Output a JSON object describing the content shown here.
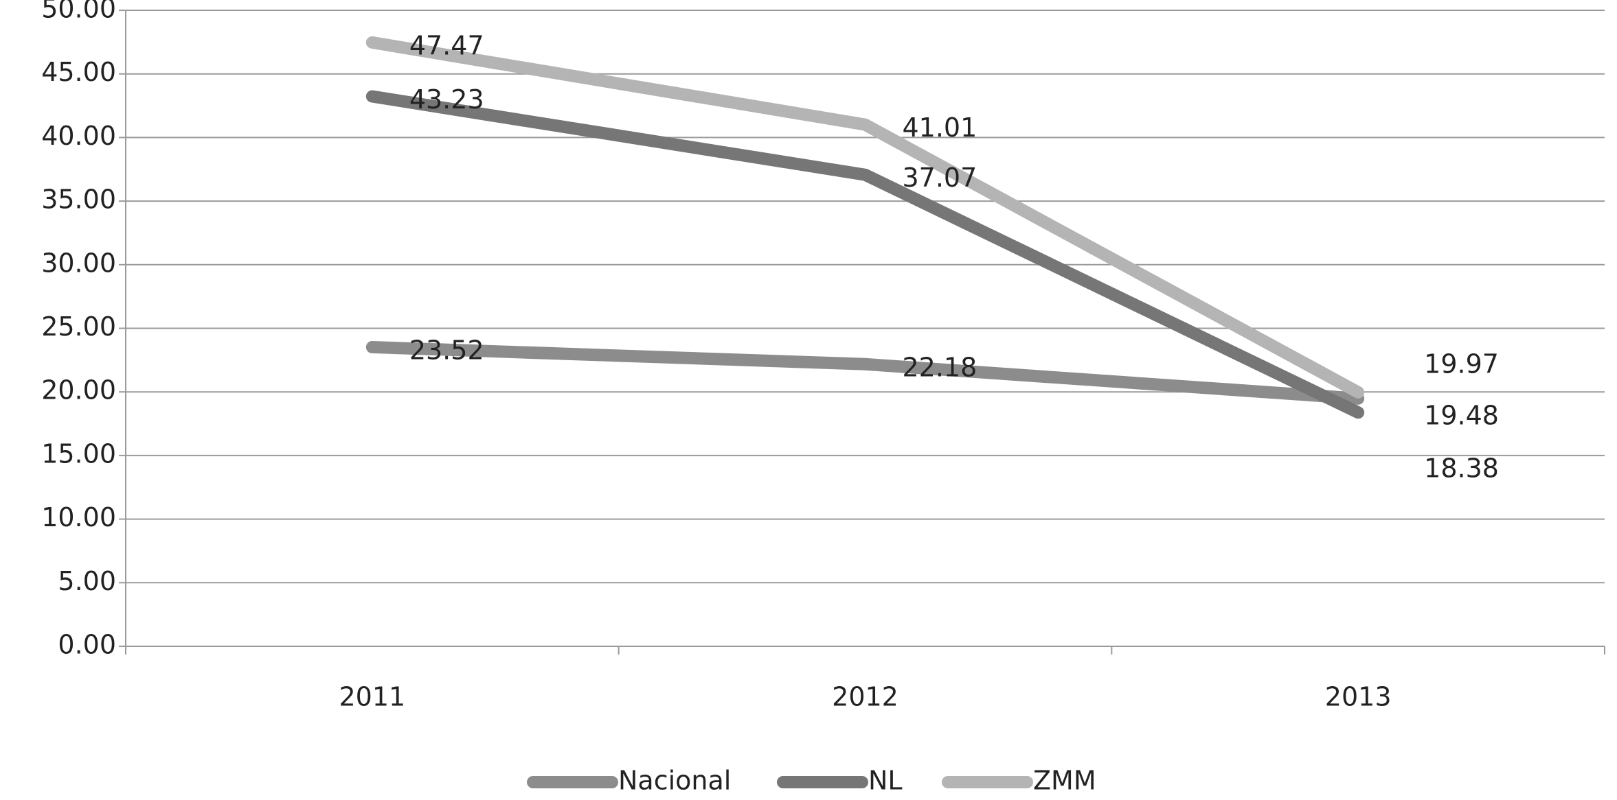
{
  "chart_data": {
    "type": "line",
    "categories": [
      "2011",
      "2012",
      "2013"
    ],
    "series": [
      {
        "name": "Nacional",
        "color": "#8c8c8c",
        "values": [
          23.52,
          22.18,
          19.48
        ]
      },
      {
        "name": "NL",
        "color": "#767676",
        "values": [
          43.23,
          37.07,
          18.38
        ]
      },
      {
        "name": "ZMM",
        "color": "#b4b4b4",
        "values": [
          47.47,
          41.01,
          19.97
        ]
      }
    ],
    "ylim": [
      0,
      50
    ],
    "yticks": [
      {
        "value": 0,
        "label": "0.00"
      },
      {
        "value": 5,
        "label": "5.00"
      },
      {
        "value": 10,
        "label": "10.00"
      },
      {
        "value": 15,
        "label": "15.00"
      },
      {
        "value": 20,
        "label": "20.00"
      },
      {
        "value": 25,
        "label": "25.00"
      },
      {
        "value": 30,
        "label": "30.00"
      },
      {
        "value": 35,
        "label": "35.00"
      },
      {
        "value": 40,
        "label": "40.00"
      },
      {
        "value": 45,
        "label": "45.00"
      },
      {
        "value": 50,
        "label": "50.00"
      }
    ],
    "grid": true,
    "legend": "bottom"
  }
}
